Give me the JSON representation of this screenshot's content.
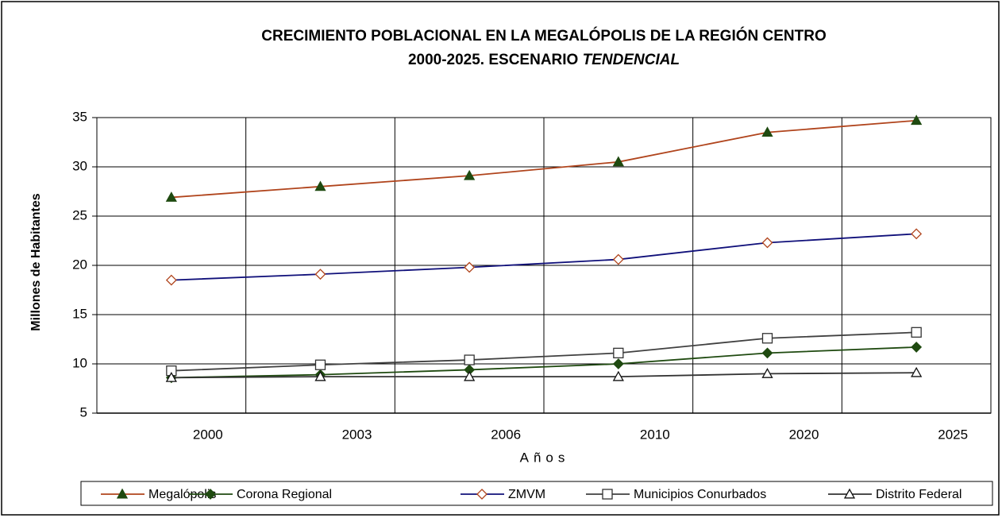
{
  "chart_data": {
    "type": "line",
    "title": "CRECIMIENTO POBLACIONAL EN LA MEGALÓPOLIS DE LA REGIÓN CENTRO",
    "subtitle": "2000-2025. ESCENARIO",
    "subtitle_emphasis": "TENDENCIAL",
    "x_label": "Años",
    "y_label": "Millones de Habitantes",
    "categories": [
      "2000",
      "2003",
      "2006",
      "2010",
      "2020",
      "2025"
    ],
    "ylim": [
      5,
      35
    ],
    "yticks": [
      5,
      10,
      15,
      20,
      25,
      30,
      35
    ],
    "grid": true,
    "legend": "bottom",
    "series": [
      {
        "name": "Megalópolis",
        "color": "#b0441c",
        "marker": "triangle",
        "marker_color": "#1f4a10",
        "marker_filled": true,
        "values": [
          26.9,
          28.0,
          29.1,
          30.5,
          33.5,
          34.7
        ]
      },
      {
        "name": "Corona Regional",
        "color": "#1f4a10",
        "marker": "diamond",
        "marker_color": "#1f4a10",
        "marker_filled": true,
        "values": [
          8.6,
          8.9,
          9.4,
          10.0,
          11.1,
          11.7
        ]
      },
      {
        "name": "ZMVM",
        "color": "#10107a",
        "marker": "diamond",
        "marker_color": "#b0441c",
        "marker_filled": false,
        "values": [
          18.5,
          19.1,
          19.8,
          20.6,
          22.3,
          23.2
        ]
      },
      {
        "name": "Municipios Conurbados",
        "color": "#404040",
        "marker": "square",
        "marker_color": "#333333",
        "marker_filled": false,
        "values": [
          9.3,
          9.9,
          10.4,
          11.1,
          12.6,
          13.2
        ]
      },
      {
        "name": "Distrito Federal",
        "color": "#333333",
        "marker": "triangle",
        "marker_color": "#111111",
        "marker_filled": false,
        "values": [
          8.6,
          8.7,
          8.7,
          8.7,
          9.0,
          9.1
        ]
      }
    ]
  }
}
